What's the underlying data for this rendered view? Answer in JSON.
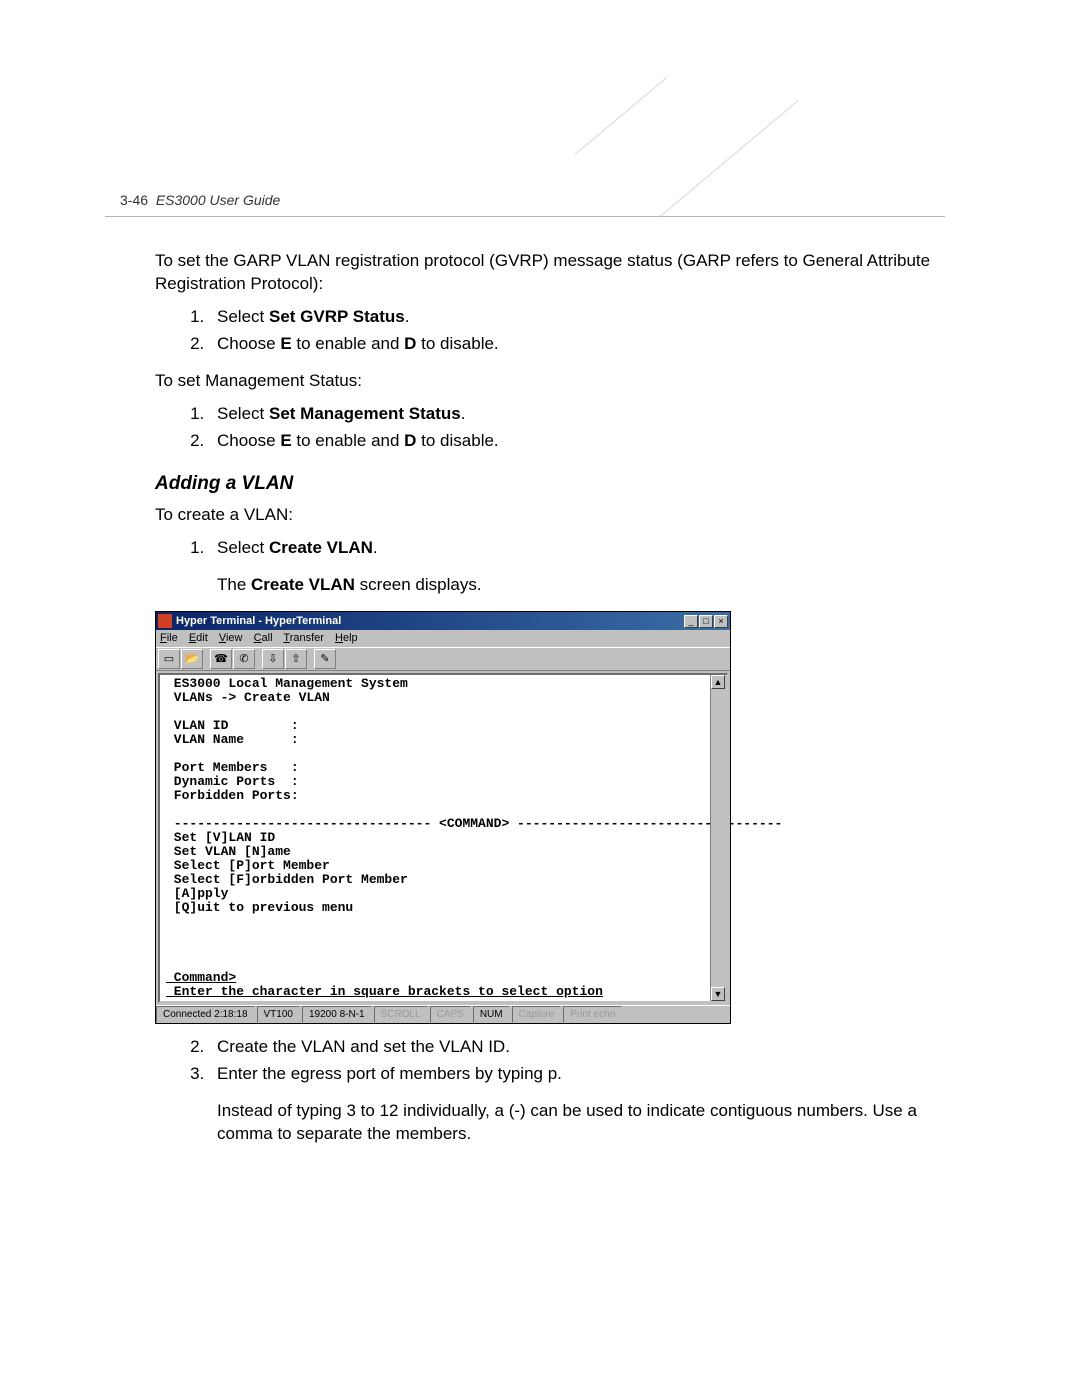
{
  "page": {
    "number": "3-46",
    "guide": "ES3000 User Guide"
  },
  "intro": {
    "gvrp": "To set the GARP VLAN registration protocol (GVRP) message status (GARP refers to General Attribute Registration Protocol):",
    "gvrp_steps": {
      "s1_pre": "Select ",
      "s1_b": "Set GVRP Status",
      "s1_post": ".",
      "s2_pre": "Choose ",
      "s2_b1": "E",
      "s2_mid": " to enable and ",
      "s2_b2": "D",
      "s2_post": " to disable."
    },
    "mgmt": "To set Management Status:",
    "mgmt_steps": {
      "s1_pre": "Select ",
      "s1_b": "Set Management Status",
      "s1_post": ".",
      "s2_pre": "Choose ",
      "s2_b1": "E",
      "s2_mid": " to enable and ",
      "s2_b2": "D",
      "s2_post": " to disable."
    }
  },
  "adding": {
    "heading": "Adding a VLAN",
    "create_intro": "To create a VLAN:",
    "step1_pre": "Select ",
    "step1_b": "Create VLAN",
    "step1_post": ".",
    "step1_sub_pre": "The ",
    "step1_sub_b": "Create VLAN",
    "step1_sub_post": " screen displays.",
    "step2": "Create the VLAN and set the VLAN ID.",
    "step3": "Enter the egress port of members by typing p.",
    "step3_note": "Instead of typing 3 to 12 individually, a (-) can be used to indicate contiguous numbers. Use a comma to separate the members."
  },
  "hyper": {
    "title": "Hyper Terminal - HyperTerminal",
    "menu": {
      "file": "File",
      "edit": "Edit",
      "view": "View",
      "call": "Call",
      "transfer": "Transfer",
      "help": "Help"
    },
    "toolbar_icons": [
      "new-icon",
      "open-icon",
      "connect-icon",
      "disconnect-icon",
      "send-icon",
      "receive-icon",
      "properties-icon"
    ],
    "term_lines": [
      " ES3000 Local Management System",
      " VLANs -> Create VLAN",
      "",
      " VLAN ID        :",
      " VLAN Name      :",
      "",
      " Port Members   :",
      " Dynamic Ports  :",
      " Forbidden Ports:",
      "",
      " --------------------------------- <COMMAND> ----------------------------------",
      " Set [V]LAN ID",
      " Set VLAN [N]ame",
      " Select [P]ort Member",
      " Select [F]orbidden Port Member",
      " [A]pply",
      " [Q]uit to previous menu",
      "",
      "",
      "",
      "",
      " Command>",
      " Enter the character in square brackets to select option"
    ],
    "status": {
      "connected": "Connected 2:18:18",
      "emu": "VT100",
      "baud": "19200 8-N-1",
      "scroll": "SCROLL",
      "caps": "CAPS",
      "num": "NUM",
      "capture": "Capture",
      "print": "Print echo"
    }
  },
  "colors": {
    "titlebar_start": "#0a246a",
    "titlebar_end": "#3a6ea5",
    "win_gray": "#c0c0c0",
    "term_bg": "#ffffff",
    "text": "#000000"
  }
}
